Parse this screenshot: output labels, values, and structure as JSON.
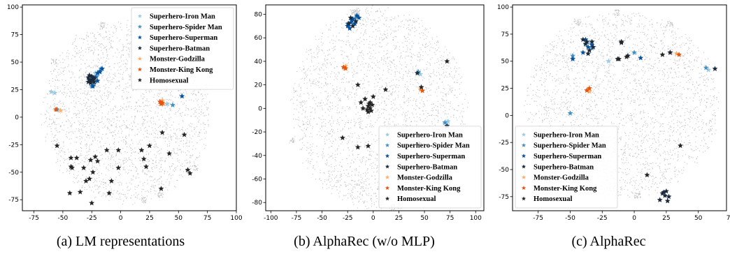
{
  "chart_data": [
    {
      "type": "scatter",
      "caption": "(a) LM representations",
      "xlim": [
        -85,
        100
      ],
      "ylim": [
        -85,
        102
      ],
      "xticks": [
        -75,
        -50,
        -25,
        0,
        25,
        50,
        75,
        100
      ],
      "yticks": [
        -75,
        -50,
        -25,
        0,
        25,
        50,
        75,
        100
      ],
      "grid": false,
      "legend_position": "top-right",
      "background": {
        "name": "other items",
        "color": "#bdbdbd",
        "center": [
          5,
          5
        ],
        "radius": [
          72,
          82
        ]
      },
      "series": [
        {
          "name": "Superhero-Iron Man",
          "color": "#9ecae1",
          "points": [
            [
              -22,
              40
            ],
            [
              -24,
              33
            ],
            [
              -57,
              22
            ],
            [
              -60,
              23
            ],
            [
              -20,
              38
            ],
            [
              40,
              12
            ]
          ]
        },
        {
          "name": "Superhero-Spider Man",
          "color": "#4292c6",
          "points": [
            [
              -18,
              42
            ],
            [
              -21,
              37
            ],
            [
              -23,
              30
            ],
            [
              -25,
              28
            ],
            [
              -55,
              7
            ],
            [
              -17,
              44
            ],
            [
              45,
              11
            ]
          ]
        },
        {
          "name": "Superhero-Superman",
          "color": "#08519c",
          "points": [
            [
              -20,
              40
            ],
            [
              -16,
              44
            ],
            [
              -22,
              36
            ],
            [
              -24,
              28
            ],
            [
              -20,
              33
            ],
            [
              53,
              19
            ],
            [
              -18,
              41
            ]
          ]
        },
        {
          "name": "Superhero-Batman",
          "color": "#1b2a3a",
          "points": [
            [
              -26,
              33
            ],
            [
              -24,
              36
            ],
            [
              -25,
              34
            ],
            [
              -28,
              32
            ],
            [
              -27,
              38
            ],
            [
              -23,
              35
            ],
            [
              -26,
              31
            ],
            [
              -24,
              34
            ],
            [
              -28,
              36
            ],
            [
              -25,
              37
            ],
            [
              -23,
              32
            ],
            [
              -27,
              34
            ]
          ]
        },
        {
          "name": "Monster-Godzilla",
          "color": "#fdae6b",
          "points": [
            [
              36,
              15
            ],
            [
              37,
              12
            ],
            [
              35,
              13
            ],
            [
              -52,
              6
            ]
          ]
        },
        {
          "name": "Monster-King Kong",
          "color": "#e6550d",
          "points": [
            [
              35,
              12
            ],
            [
              34,
              14
            ],
            [
              36,
              13
            ],
            [
              -56,
              7
            ]
          ]
        },
        {
          "name": "Homosexual",
          "color": "#252525",
          "points": [
            [
              -55,
              -26
            ],
            [
              -43,
              -37
            ],
            [
              -38,
              -37
            ],
            [
              -43,
              -45
            ],
            [
              -42,
              -46
            ],
            [
              -22,
              -36
            ],
            [
              -20,
              -40
            ],
            [
              -24,
              -50
            ],
            [
              -27,
              -56
            ],
            [
              -30,
              -58
            ],
            [
              -32,
              -46
            ],
            [
              -12,
              -30
            ],
            [
              -8,
              -58
            ],
            [
              -2,
              -46
            ],
            [
              -2,
              -30
            ],
            [
              -10,
              -69
            ],
            [
              -35,
              -68
            ],
            [
              -25,
              -78
            ],
            [
              -44,
              -69
            ],
            [
              -26,
              -39
            ],
            [
              20,
              -38
            ],
            [
              18,
              -30
            ],
            [
              22,
              -45
            ],
            [
              25,
              -26
            ],
            [
              36,
              -14
            ],
            [
              35,
              -65
            ],
            [
              42,
              -33
            ],
            [
              55,
              -16
            ],
            [
              58,
              -48
            ],
            [
              60,
              -51
            ]
          ]
        }
      ]
    },
    {
      "type": "scatter",
      "caption": "(b) AlphaRec (w/o MLP)",
      "xlim": [
        -105,
        108
      ],
      "ylim": [
        -87,
        88
      ],
      "xticks": [
        -100,
        -75,
        -50,
        -25,
        0,
        25,
        50,
        75,
        100
      ],
      "yticks": [
        -80,
        -60,
        -40,
        -20,
        0,
        20,
        40,
        60,
        80
      ],
      "grid": false,
      "legend_position": "bottom-right",
      "background": {
        "name": "other items",
        "color": "#bdbdbd",
        "center": [
          5,
          0
        ],
        "radius": [
          85,
          85
        ]
      },
      "series": [
        {
          "name": "Superhero-Iron Man",
          "color": "#9ecae1",
          "points": [
            [
              -23,
              70
            ],
            [
              72,
              -14
            ],
            [
              73,
              -11
            ],
            [
              -20,
              74
            ],
            [
              46,
              29
            ]
          ]
        },
        {
          "name": "Superhero-Spider Man",
          "color": "#4292c6",
          "points": [
            [
              -18,
              76
            ],
            [
              70,
              -12
            ],
            [
              -25,
              72
            ],
            [
              44,
              31
            ],
            [
              -16,
              78
            ]
          ]
        },
        {
          "name": "Superhero-Superman",
          "color": "#08519c",
          "points": [
            [
              -20,
              76
            ],
            [
              -22,
              73
            ],
            [
              -25,
              70
            ],
            [
              -16,
              79
            ],
            [
              -18,
              72
            ],
            [
              -23,
              68
            ],
            [
              -14,
              77
            ],
            [
              -21,
              75
            ]
          ]
        },
        {
          "name": "Superhero-Batman",
          "color": "#1b2a3a",
          "points": [
            [
              -24,
              72
            ],
            [
              -20,
              70
            ],
            [
              -17,
              74
            ],
            [
              -22,
              77
            ],
            [
              43,
              30
            ],
            [
              72,
              -15
            ]
          ]
        },
        {
          "name": "Monster-Godzilla",
          "color": "#fdae6b",
          "points": [
            [
              -27,
              36
            ],
            [
              -28,
              34
            ],
            [
              46,
              16
            ]
          ]
        },
        {
          "name": "Monster-King Kong",
          "color": "#e6550d",
          "points": [
            [
              -29,
              35
            ],
            [
              -27,
              34
            ],
            [
              48,
              15
            ]
          ]
        },
        {
          "name": "Homosexual",
          "color": "#252525",
          "points": [
            [
              -3,
              5
            ],
            [
              -5,
              2
            ],
            [
              -2,
              -2
            ],
            [
              -4,
              4
            ],
            [
              -6,
              -1
            ],
            [
              -3,
              0
            ],
            [
              -1,
              3
            ],
            [
              -5,
              -3
            ],
            [
              -8,
              8
            ],
            [
              -10,
              0
            ],
            [
              -12,
              5
            ],
            [
              0,
              10
            ],
            [
              -15,
              20
            ],
            [
              12,
              16
            ],
            [
              47,
              18
            ],
            [
              72,
              40
            ],
            [
              -15,
              -33
            ],
            [
              -30,
              -25
            ],
            [
              -5,
              -32
            ],
            [
              45,
              -30
            ]
          ]
        }
      ]
    },
    {
      "type": "scatter",
      "caption": "(c) AlphaRec",
      "xlim": [
        -95,
        72
      ],
      "ylim": [
        -88,
        102
      ],
      "xticks": [
        -75,
        -50,
        -25,
        0,
        25,
        50,
        75
      ],
      "yticks": [
        -75,
        -50,
        -25,
        0,
        25,
        50,
        75,
        100
      ],
      "grid": false,
      "legend_position": "bottom-left",
      "background": {
        "name": "other items",
        "color": "#bdbdbd",
        "center": [
          -10,
          10
        ],
        "radius": [
          75,
          85
        ]
      },
      "series": [
        {
          "name": "Superhero-Iron Man",
          "color": "#9ecae1",
          "points": [
            [
              -35,
              67
            ],
            [
              -38,
              65
            ],
            [
              -5,
              55
            ],
            [
              58,
              42
            ],
            [
              -20,
              50
            ]
          ]
        },
        {
          "name": "Superhero-Spider Man",
          "color": "#4292c6",
          "points": [
            [
              -33,
              62
            ],
            [
              -48,
              55
            ],
            [
              0,
              58
            ],
            [
              56,
              44
            ],
            [
              -50,
              2
            ]
          ]
        },
        {
          "name": "Superhero-Superman",
          "color": "#08519c",
          "points": [
            [
              -38,
              70
            ],
            [
              -36,
              63
            ],
            [
              -33,
              65
            ],
            [
              -40,
              58
            ],
            [
              -48,
              52
            ],
            [
              5,
              53
            ],
            [
              28,
              58
            ]
          ]
        },
        {
          "name": "Superhero-Batman",
          "color": "#1b2a3a",
          "points": [
            [
              -40,
              70
            ],
            [
              -37,
              68
            ],
            [
              -35,
              60
            ],
            [
              -32,
              63
            ],
            [
              -38,
              66
            ],
            [
              -36,
              57
            ],
            [
              -10,
              67
            ],
            [
              -5,
              55
            ],
            [
              25,
              -70
            ],
            [
              27,
              -75
            ],
            [
              22,
              -72
            ],
            [
              20,
              -78
            ],
            [
              24,
              -74
            ],
            [
              26,
              -79
            ],
            [
              23,
              -71
            ],
            [
              63,
              43
            ],
            [
              -13,
              52
            ],
            [
              -33,
              68
            ]
          ]
        },
        {
          "name": "Monster-Godzilla",
          "color": "#fdae6b",
          "points": [
            [
              -36,
              24
            ],
            [
              -35,
              22
            ],
            [
              33,
              57
            ]
          ]
        },
        {
          "name": "Monster-King Kong",
          "color": "#e6550d",
          "points": [
            [
              -37,
              23
            ],
            [
              -35,
              25
            ],
            [
              35,
              56
            ]
          ]
        },
        {
          "name": "Homosexual",
          "color": "#252525",
          "points": [
            [
              -12,
              52
            ],
            [
              -6,
              54
            ],
            [
              22,
              56
            ],
            [
              36,
              -28
            ],
            [
              10,
              -55
            ],
            [
              28,
              58
            ],
            [
              -10,
              68
            ]
          ]
        }
      ]
    }
  ]
}
